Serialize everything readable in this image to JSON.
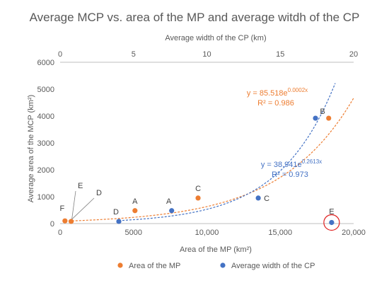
{
  "chart_data": {
    "type": "scatter",
    "title": "Average MCP vs. area of the MP and average witdh of the CP",
    "xlabel_bottom": "Area of the MP (km²)",
    "xlabel_top": "Average width of the CP (km)",
    "ylabel": "Average area of the MCP (km²)",
    "x_bottom_range": [
      0,
      20000
    ],
    "x_top_range": [
      0,
      20
    ],
    "y_range": [
      0,
      6000
    ],
    "x_bottom_ticks": [
      "0",
      "5000",
      "10,000",
      "15,000",
      "20,000"
    ],
    "x_top_ticks": [
      "0",
      "5",
      "10",
      "15",
      "20"
    ],
    "y_ticks": [
      "0",
      "1000",
      "2000",
      "3000",
      "4000",
      "5000",
      "6000"
    ],
    "grid": false,
    "legend_position": "bottom",
    "series": [
      {
        "name": "Area of the MP",
        "color": "#ED7D31",
        "axis": "bottom",
        "points": [
          {
            "x": 330,
            "y": 100,
            "label": "F"
          },
          {
            "x": 750,
            "y": 80,
            "label": ""
          },
          {
            "x": 5100,
            "y": 480,
            "label": "A"
          },
          {
            "x": 9400,
            "y": 950,
            "label": "C"
          },
          {
            "x": 18300,
            "y": 3920,
            "label": ""
          }
        ],
        "trendline": {
          "type": "exponential",
          "a": 85.518,
          "b": 0.0002,
          "equation": "y = 85.518e",
          "exponent": "0.0002x",
          "r2": "R² = 0.986"
        }
      },
      {
        "name": "Average width of the CP",
        "color": "#4472C4",
        "axis": "top",
        "points": [
          {
            "x": 4.0,
            "y": 80,
            "label": "D"
          },
          {
            "x": 7.6,
            "y": 480,
            "label": "A"
          },
          {
            "x": 13.5,
            "y": 950,
            "label": "C"
          },
          {
            "x": 17.4,
            "y": 3920,
            "label": "B"
          },
          {
            "x": 18.5,
            "y": 40,
            "label": "E"
          }
        ],
        "trendline": {
          "type": "exponential",
          "a": 38.941,
          "b": 0.2613,
          "equation": "y = 38.941e",
          "exponent": "0.2613x",
          "r2": "R² = 0.973"
        }
      }
    ],
    "callouts": [
      {
        "label": "E",
        "x": 750,
        "y": 80
      },
      {
        "label": "D",
        "x": 750,
        "y": 80
      }
    ],
    "highlight": {
      "series": 1,
      "point": 4,
      "color": "#E02020"
    }
  }
}
